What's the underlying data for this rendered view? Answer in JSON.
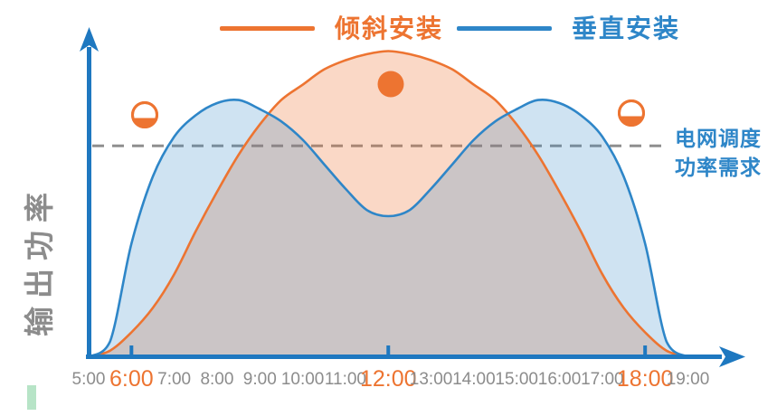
{
  "legend": {
    "tilted": "倾斜安装",
    "vertical": "垂直安装"
  },
  "y_axis_label": "输出功率",
  "demand_label": {
    "line1": "电网调度",
    "line2": "功率需求"
  },
  "colors": {
    "tilted_orange": "#ED7431",
    "vertical_blue": "#2E86C8",
    "axis_blue": "#1E78C0",
    "gray_text": "#8C8C8C",
    "dashed_gray": "#8F8F8F",
    "tilted_fill": "rgba(237,116,49,0.28)",
    "vertical_fill": "rgba(46,134,200,0.23)",
    "green_marker": "#B7E4C7"
  },
  "chart_data": {
    "type": "area",
    "title": "",
    "xlabel": "",
    "ylabel": "输出功率",
    "ylim": [
      0,
      105
    ],
    "grid": false,
    "legend_position": "top",
    "x": [
      "5:00",
      "5:30",
      "6:00",
      "6:30",
      "7:00",
      "7:30",
      "8:00",
      "8:30",
      "9:00",
      "9:30",
      "10:00",
      "10:30",
      "11:00",
      "11:30",
      "12:00",
      "12:30",
      "13:00",
      "13:30",
      "14:00",
      "14:30",
      "15:00",
      "15:30",
      "16:00",
      "16:30",
      "17:00",
      "17:30",
      "18:00",
      "18:30",
      "19:00"
    ],
    "tick_labels": [
      "5:00",
      "6:00",
      "7:00",
      "8:00",
      "9:00",
      "10:00",
      "11:00",
      "12:00",
      "13:00",
      "14:00",
      "15:00",
      "16:00",
      "17:00",
      "18:00",
      "19:00"
    ],
    "highlighted_ticks": [
      "6:00",
      "12:00",
      "18:00"
    ],
    "series": [
      {
        "name": "倾斜安装",
        "color": "#ED7431",
        "values": [
          0,
          2,
          8,
          16,
          27,
          41,
          54,
          66,
          76,
          84,
          89,
          94,
          97,
          99,
          100,
          99,
          97,
          94,
          89,
          84,
          76,
          66,
          54,
          41,
          27,
          16,
          8,
          2,
          0
        ]
      },
      {
        "name": "垂直安装",
        "color": "#2E86C8",
        "values": [
          0,
          5,
          37,
          59,
          72,
          79,
          83,
          84,
          81,
          77,
          71,
          63,
          55,
          48,
          46,
          48,
          55,
          63,
          71,
          77,
          81,
          84,
          83,
          79,
          72,
          59,
          37,
          5,
          0
        ]
      }
    ],
    "demand_line": {
      "label": "电网调度功率需求",
      "value": 69,
      "style": "dashed"
    },
    "suns": [
      {
        "type": "half",
        "time": "6:45"
      },
      {
        "type": "full",
        "time": "12:00"
      },
      {
        "type": "half",
        "time": "17:40"
      }
    ]
  }
}
